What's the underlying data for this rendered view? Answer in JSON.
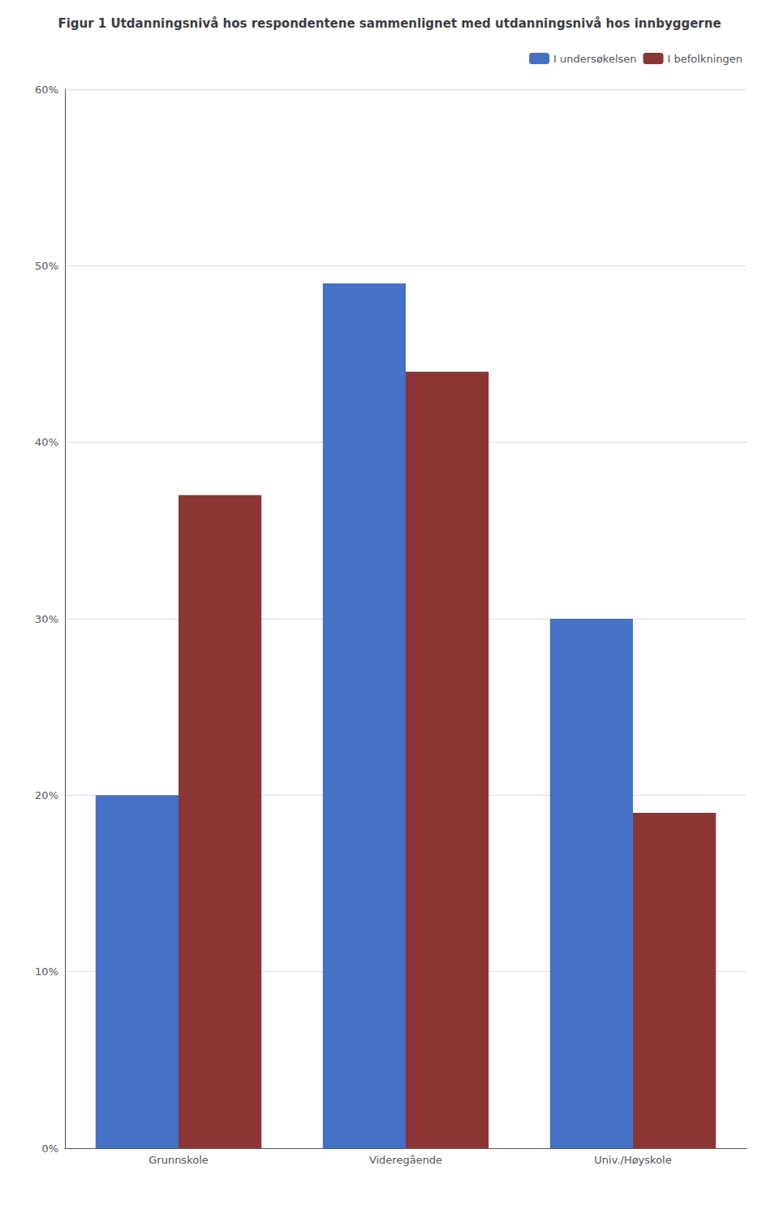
{
  "chart_data": {
    "type": "bar",
    "title": "Figur 1 Utdanningsnivå hos respondentene sammenlignet med utdanningsnivå hos innbyggerne",
    "categories": [
      "Grunnskole",
      "Videregående",
      "Univ./Høyskole"
    ],
    "series": [
      {
        "name": "I undersøkelsen",
        "color": "#4472C4",
        "values": [
          0.2,
          0.49,
          0.3
        ]
      },
      {
        "name": "I befolkningen",
        "color": "#8B3535",
        "values": [
          0.37,
          0.44,
          0.19
        ]
      }
    ],
    "ylim": [
      0.0,
      0.6
    ],
    "yticks": [
      {
        "value": 0.0,
        "label": "0%"
      },
      {
        "value": 0.1,
        "label": "10%"
      },
      {
        "value": 0.2,
        "label": "20%"
      },
      {
        "value": 0.3,
        "label": "30%"
      },
      {
        "value": 0.4,
        "label": "40%"
      },
      {
        "value": 0.5,
        "label": "50%"
      },
      {
        "value": 0.6,
        "label": "60%"
      }
    ],
    "grid": true,
    "legend": "upper right"
  }
}
